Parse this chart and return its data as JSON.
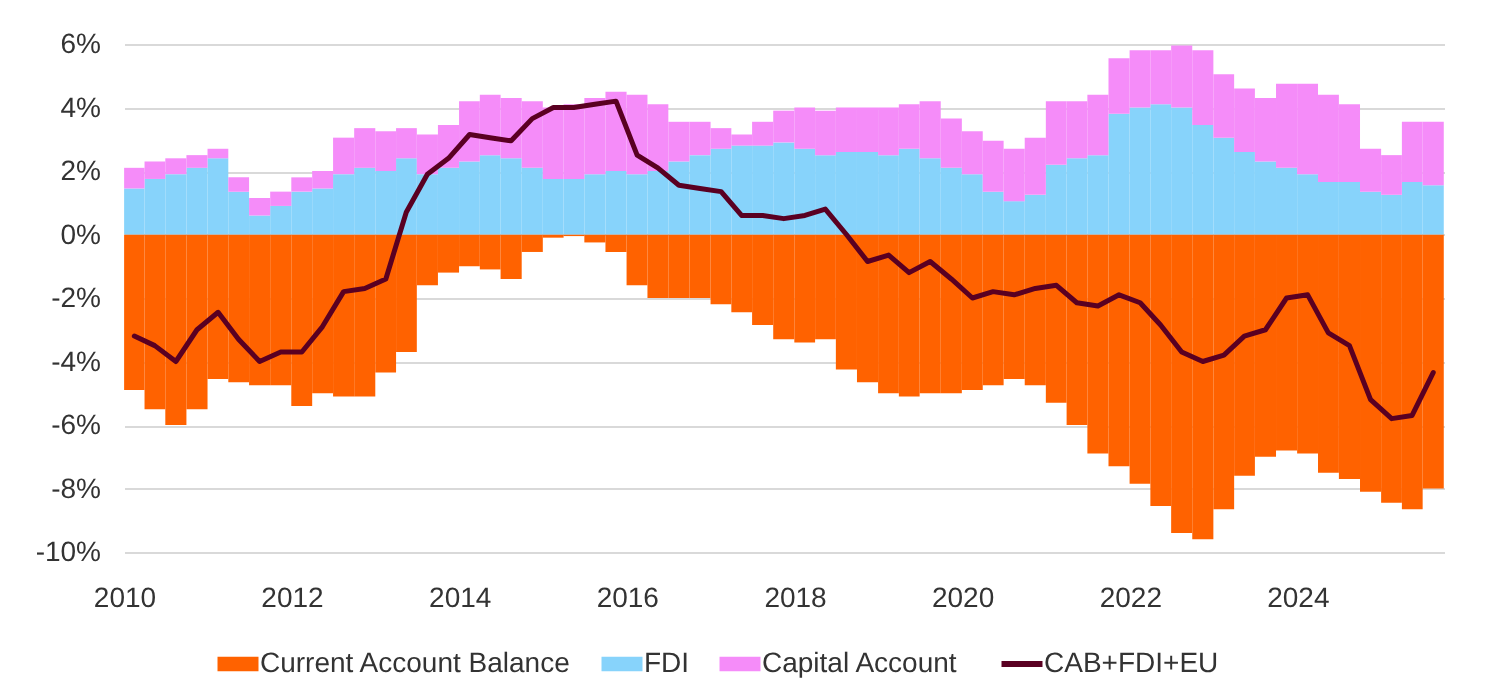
{
  "chart_data": {
    "type": "bar",
    "stacked": true,
    "legend": "bottom",
    "grid": "y",
    "x": [
      "2010-02-15",
      "2010-05-15",
      "2010-08-15",
      "2010-11-15",
      "2011-02-15",
      "2011-05-15",
      "2011-08-15",
      "2011-11-15",
      "2012-02-15",
      "2012-05-15",
      "2012-08-15",
      "2012-11-15",
      "2013-02-15",
      "2013-05-15",
      "2013-08-15",
      "2013-11-15",
      "2014-02-15",
      "2014-05-15",
      "2014-08-15",
      "2014-11-15",
      "2015-02-15",
      "2015-05-15",
      "2015-08-15",
      "2015-11-15",
      "2016-02-15",
      "2016-05-15",
      "2016-08-15",
      "2016-11-15",
      "2017-02-15",
      "2017-05-15",
      "2017-08-15",
      "2017-11-15",
      "2018-02-15",
      "2018-05-15",
      "2018-08-15",
      "2018-11-15",
      "2019-02-15",
      "2019-05-15",
      "2019-08-15",
      "2019-11-15",
      "2020-02-15",
      "2020-05-15",
      "2020-08-15",
      "2020-11-15",
      "2021-02-15",
      "2021-05-15",
      "2021-08-15",
      "2021-11-15",
      "2022-02-15",
      "2022-05-15",
      "2022-08-15",
      "2022-11-15",
      "2023-02-15",
      "2023-05-15",
      "2023-08-15",
      "2023-11-15",
      "2024-02-15",
      "2024-05-15",
      "2024-08-15",
      "2024-11-15",
      "2025-02-15",
      "2025-05-15",
      "2025-08-15"
    ],
    "xlim": [
      "2010-01",
      "2025-10"
    ],
    "xticks": [
      {
        "value": "2010",
        "label": "2010"
      },
      {
        "value": "2012",
        "label": "2012"
      },
      {
        "value": "2014",
        "label": "2014"
      },
      {
        "value": "2016",
        "label": "2016"
      },
      {
        "value": "2018",
        "label": "2018"
      },
      {
        "value": "2020",
        "label": "2020"
      },
      {
        "value": "2022",
        "label": "2022"
      },
      {
        "value": "2024",
        "label": "2024"
      }
    ],
    "ylim": [
      -10,
      6
    ],
    "yticks": [
      {
        "value": -10,
        "label": "-10%"
      },
      {
        "value": -8,
        "label": "-8%"
      },
      {
        "value": -6,
        "label": "-6%"
      },
      {
        "value": -4,
        "label": "-4%"
      },
      {
        "value": -2,
        "label": "-2%"
      },
      {
        "value": 0,
        "label": "0%"
      },
      {
        "value": 2,
        "label": "2%"
      },
      {
        "value": 4,
        "label": "4%"
      },
      {
        "value": 6,
        "label": "6%"
      }
    ],
    "series": [
      {
        "name": "Current Account Balance",
        "type": "bar",
        "color": "#ff6200",
        "values": [
          -4.9,
          -5.5,
          -6.0,
          -5.5,
          -4.55,
          -4.65,
          -4.75,
          -4.75,
          -5.4,
          -5.0,
          -5.1,
          -5.1,
          -4.35,
          -3.7,
          -1.6,
          -1.2,
          -1.0,
          -1.1,
          -1.4,
          -0.55,
          -0.1,
          -0.05,
          -0.25,
          -0.55,
          -1.6,
          -2.0,
          -2.0,
          -2.0,
          -2.2,
          -2.45,
          -2.85,
          -3.3,
          -3.4,
          -3.3,
          -4.25,
          -4.65,
          -5.0,
          -5.1,
          -5.0,
          -5.0,
          -4.9,
          -4.75,
          -4.55,
          -4.75,
          -5.3,
          -6.0,
          -6.9,
          -7.3,
          -7.85,
          -8.55,
          -9.4,
          -9.6,
          -8.65,
          -7.6,
          -7.0,
          -6.8,
          -6.9,
          -7.5,
          -7.7,
          -8.1,
          -8.45,
          -8.65,
          -8.0
        ]
      },
      {
        "name": "FDI",
        "type": "bar",
        "color": "#87d3fb",
        "values": [
          1.45,
          1.75,
          1.9,
          2.1,
          2.4,
          1.35,
          0.6,
          0.9,
          1.35,
          1.45,
          1.9,
          2.1,
          2.0,
          2.4,
          1.9,
          2.1,
          2.3,
          2.5,
          2.4,
          2.1,
          1.75,
          1.75,
          1.9,
          2.0,
          1.9,
          2.0,
          2.3,
          2.5,
          2.7,
          2.8,
          2.8,
          2.9,
          2.7,
          2.5,
          2.6,
          2.6,
          2.5,
          2.7,
          2.4,
          2.1,
          1.9,
          1.35,
          1.05,
          1.25,
          2.2,
          2.4,
          2.5,
          3.8,
          4.0,
          4.1,
          4.0,
          3.45,
          3.05,
          2.6,
          2.3,
          2.1,
          1.9,
          1.65,
          1.65,
          1.35,
          1.25,
          1.65,
          1.55
        ]
      },
      {
        "name": "Capital Account",
        "type": "bar",
        "color": "#f58cf9",
        "values": [
          0.65,
          0.55,
          0.5,
          0.4,
          0.3,
          0.45,
          0.55,
          0.45,
          0.45,
          0.55,
          1.15,
          1.25,
          1.25,
          0.95,
          1.25,
          1.35,
          1.9,
          1.9,
          1.9,
          2.1,
          2.25,
          2.35,
          2.4,
          2.5,
          2.5,
          2.1,
          1.25,
          1.05,
          0.65,
          0.35,
          0.75,
          1.0,
          1.3,
          1.4,
          1.4,
          1.4,
          1.5,
          1.4,
          1.8,
          1.55,
          1.35,
          1.6,
          1.65,
          1.8,
          2.0,
          1.8,
          1.9,
          1.75,
          1.8,
          1.7,
          1.95,
          2.35,
          2.0,
          2.0,
          2.0,
          2.65,
          2.85,
          2.75,
          2.45,
          1.35,
          1.25,
          1.9,
          2.0
        ]
      },
      {
        "name": "CAB+FDI+EU",
        "type": "line",
        "color": "#5a0022",
        "values": [
          -3.2,
          -3.5,
          -4.0,
          -3.0,
          -2.45,
          -3.3,
          -4.0,
          -3.7,
          -3.7,
          -2.9,
          -1.8,
          -1.7,
          -1.4,
          0.7,
          1.9,
          2.4,
          3.15,
          3.05,
          2.95,
          3.65,
          4.0,
          4.0,
          4.1,
          4.2,
          2.5,
          2.1,
          1.55,
          1.45,
          1.35,
          0.6,
          0.6,
          0.5,
          0.6,
          0.8,
          0.0,
          -0.85,
          -0.65,
          -1.2,
          -0.85,
          -1.4,
          -2.0,
          -1.8,
          -1.9,
          -1.7,
          -1.6,
          -2.15,
          -2.25,
          -1.9,
          -2.15,
          -2.85,
          -3.7,
          -4.0,
          -3.8,
          -3.2,
          -3.0,
          -2.0,
          -1.9,
          -3.1,
          -3.5,
          -5.2,
          -5.8,
          -5.7,
          -4.35
        ]
      }
    ]
  }
}
